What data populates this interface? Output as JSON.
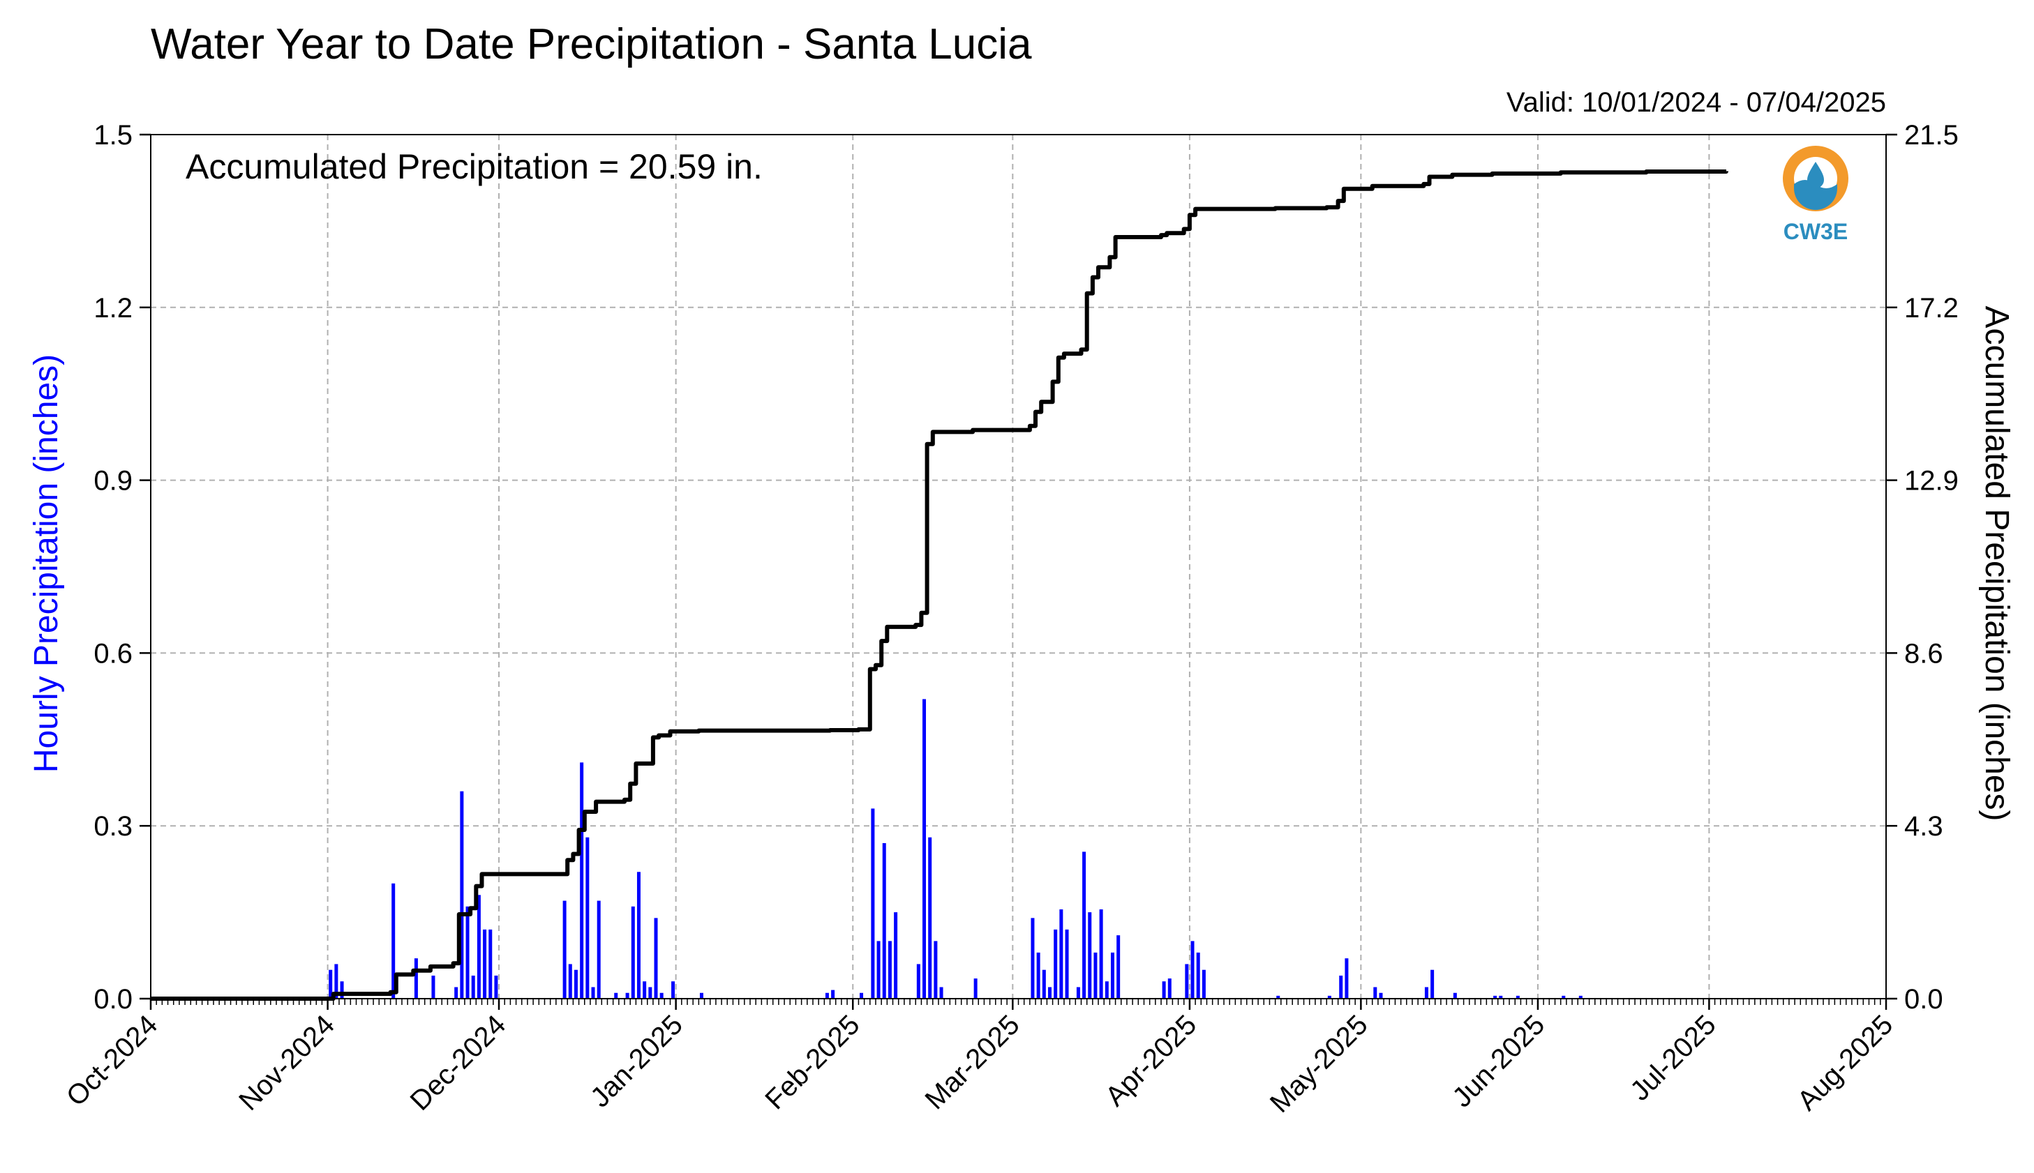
{
  "chart_data": {
    "type": "bar+line",
    "title": "Water Year to Date Precipitation - Santa Lucia",
    "subtitle": "Valid: 10/01/2024 - 07/04/2025",
    "annotation": "Accumulated Precipitation = 20.59 in.",
    "y_left_label": "Hourly Precipitation (inches)",
    "y_right_label": "Accumulated Precipitation (inches)",
    "x_range": [
      "2024-10-01",
      "2025-08-01"
    ],
    "y_left_range": [
      0,
      1.5
    ],
    "y_right_range": [
      0,
      21.5
    ],
    "x_ticks": [
      "Oct-2024",
      "Nov-2024",
      "Dec-2024",
      "Jan-2025",
      "Feb-2025",
      "Mar-2025",
      "Apr-2025",
      "May-2025",
      "Jun-2025",
      "Jul-2025",
      "Aug-2025"
    ],
    "y_left_ticks": [
      "0.0",
      "0.3",
      "0.6",
      "0.9",
      "1.2",
      "1.5"
    ],
    "y_right_ticks": [
      "0.0",
      "4.3",
      "8.6",
      "12.9",
      "17.2",
      "21.5"
    ],
    "grid": true,
    "logo_text": "CW3E",
    "colors": {
      "hourly_bars": "#0000ff",
      "accumulated_line": "#000000",
      "left_label": "#0000ff",
      "grid": "#b0b0b0",
      "logo_orange": "#f39a2b",
      "logo_blue": "#2b8dbf"
    },
    "series": [
      {
        "name": "Hourly Precipitation",
        "kind": "bar",
        "axis": "left",
        "points": [
          [
            "2024-11-01",
            0.05
          ],
          [
            "2024-11-02",
            0.06
          ],
          [
            "2024-11-03",
            0.03
          ],
          [
            "2024-11-12",
            0.2
          ],
          [
            "2024-11-16",
            0.07
          ],
          [
            "2024-11-19",
            0.04
          ],
          [
            "2024-11-23",
            0.02
          ],
          [
            "2024-11-24",
            0.36
          ],
          [
            "2024-11-25",
            0.16
          ],
          [
            "2024-11-26",
            0.04
          ],
          [
            "2024-11-27",
            0.18
          ],
          [
            "2024-11-28",
            0.12
          ],
          [
            "2024-11-29",
            0.12
          ],
          [
            "2024-11-30",
            0.04
          ],
          [
            "2024-12-12",
            0.17
          ],
          [
            "2024-12-13",
            0.06
          ],
          [
            "2024-12-14",
            0.05
          ],
          [
            "2024-12-15",
            0.41
          ],
          [
            "2024-12-16",
            0.28
          ],
          [
            "2024-12-17",
            0.02
          ],
          [
            "2024-12-18",
            0.17
          ],
          [
            "2024-12-21",
            0.01
          ],
          [
            "2024-12-23",
            0.01
          ],
          [
            "2024-12-24",
            0.16
          ],
          [
            "2024-12-25",
            0.22
          ],
          [
            "2024-12-26",
            0.03
          ],
          [
            "2024-12-27",
            0.02
          ],
          [
            "2024-12-28",
            0.14
          ],
          [
            "2024-12-29",
            0.01
          ],
          [
            "2024-12-31",
            0.03
          ],
          [
            "2025-01-05",
            0.01
          ],
          [
            "2025-01-27",
            0.01
          ],
          [
            "2025-01-28",
            0.015
          ],
          [
            "2025-02-02",
            0.01
          ],
          [
            "2025-02-04",
            0.33
          ],
          [
            "2025-02-05",
            0.1
          ],
          [
            "2025-02-06",
            0.27
          ],
          [
            "2025-02-07",
            0.1
          ],
          [
            "2025-02-08",
            0.15
          ],
          [
            "2025-02-12",
            0.06
          ],
          [
            "2025-02-13",
            0.52
          ],
          [
            "2025-02-14",
            0.28
          ],
          [
            "2025-02-15",
            0.1
          ],
          [
            "2025-02-16",
            0.02
          ],
          [
            "2025-02-22",
            0.035
          ],
          [
            "2025-03-04",
            0.14
          ],
          [
            "2025-03-05",
            0.08
          ],
          [
            "2025-03-06",
            0.05
          ],
          [
            "2025-03-07",
            0.02
          ],
          [
            "2025-03-08",
            0.12
          ],
          [
            "2025-03-09",
            0.155
          ],
          [
            "2025-03-10",
            0.12
          ],
          [
            "2025-03-12",
            0.02
          ],
          [
            "2025-03-13",
            0.255
          ],
          [
            "2025-03-14",
            0.15
          ],
          [
            "2025-03-15",
            0.08
          ],
          [
            "2025-03-16",
            0.155
          ],
          [
            "2025-03-17",
            0.03
          ],
          [
            "2025-03-18",
            0.08
          ],
          [
            "2025-03-19",
            0.11
          ],
          [
            "2025-03-27",
            0.03
          ],
          [
            "2025-03-28",
            0.035
          ],
          [
            "2025-03-31",
            0.06
          ],
          [
            "2025-04-01",
            0.1
          ],
          [
            "2025-04-02",
            0.08
          ],
          [
            "2025-04-03",
            0.05
          ],
          [
            "2025-04-16",
            0.005
          ],
          [
            "2025-04-25",
            0.005
          ],
          [
            "2025-04-27",
            0.04
          ],
          [
            "2025-04-28",
            0.07
          ],
          [
            "2025-05-03",
            0.02
          ],
          [
            "2025-05-04",
            0.01
          ],
          [
            "2025-05-12",
            0.02
          ],
          [
            "2025-05-13",
            0.05
          ],
          [
            "2025-05-17",
            0.01
          ],
          [
            "2025-05-24",
            0.005
          ],
          [
            "2025-05-25",
            0.005
          ],
          [
            "2025-05-28",
            0.005
          ],
          [
            "2025-06-05",
            0.005
          ],
          [
            "2025-06-08",
            0.005
          ]
        ]
      },
      {
        "name": "Accumulated Precipitation",
        "kind": "step",
        "axis": "right",
        "points": [
          [
            "2024-10-01",
            0
          ],
          [
            "2024-11-01",
            0.0
          ],
          [
            "2024-11-02",
            0.12
          ],
          [
            "2024-11-12",
            0.16
          ],
          [
            "2024-11-13",
            0.6
          ],
          [
            "2024-11-16",
            0.7
          ],
          [
            "2024-11-19",
            0.8
          ],
          [
            "2024-11-23",
            0.88
          ],
          [
            "2024-11-24",
            2.1
          ],
          [
            "2024-11-26",
            2.25
          ],
          [
            "2024-11-27",
            2.8
          ],
          [
            "2024-11-28",
            3.1
          ],
          [
            "2024-12-12",
            3.1
          ],
          [
            "2024-12-13",
            3.45
          ],
          [
            "2024-12-14",
            3.6
          ],
          [
            "2024-12-15",
            4.2
          ],
          [
            "2024-12-16",
            4.65
          ],
          [
            "2024-12-18",
            4.9
          ],
          [
            "2024-12-23",
            4.95
          ],
          [
            "2024-12-24",
            5.35
          ],
          [
            "2024-12-25",
            5.85
          ],
          [
            "2024-12-28",
            6.5
          ],
          [
            "2024-12-29",
            6.55
          ],
          [
            "2024-12-31",
            6.65
          ],
          [
            "2025-01-05",
            6.67
          ],
          [
            "2025-01-28",
            6.68
          ],
          [
            "2025-02-02",
            6.7
          ],
          [
            "2025-02-04",
            8.2
          ],
          [
            "2025-02-05",
            8.3
          ],
          [
            "2025-02-06",
            8.9
          ],
          [
            "2025-02-07",
            9.25
          ],
          [
            "2025-02-12",
            9.3
          ],
          [
            "2025-02-13",
            9.6
          ],
          [
            "2025-02-14",
            13.8
          ],
          [
            "2025-02-15",
            14.1
          ],
          [
            "2025-02-22",
            14.15
          ],
          [
            "2025-03-04",
            14.25
          ],
          [
            "2025-03-05",
            14.6
          ],
          [
            "2025-03-06",
            14.85
          ],
          [
            "2025-03-08",
            15.35
          ],
          [
            "2025-03-09",
            15.95
          ],
          [
            "2025-03-10",
            16.05
          ],
          [
            "2025-03-13",
            16.15
          ],
          [
            "2025-03-14",
            17.55
          ],
          [
            "2025-03-15",
            17.95
          ],
          [
            "2025-03-16",
            18.2
          ],
          [
            "2025-03-18",
            18.45
          ],
          [
            "2025-03-19",
            18.95
          ],
          [
            "2025-03-27",
            19.0
          ],
          [
            "2025-03-28",
            19.05
          ],
          [
            "2025-03-31",
            19.15
          ],
          [
            "2025-04-01",
            19.5
          ],
          [
            "2025-04-02",
            19.65
          ],
          [
            "2025-04-16",
            19.67
          ],
          [
            "2025-04-25",
            19.69
          ],
          [
            "2025-04-27",
            19.85
          ],
          [
            "2025-04-28",
            20.15
          ],
          [
            "2025-05-03",
            20.22
          ],
          [
            "2025-05-12",
            20.27
          ],
          [
            "2025-05-13",
            20.45
          ],
          [
            "2025-05-17",
            20.5
          ],
          [
            "2025-05-24",
            20.53
          ],
          [
            "2025-06-05",
            20.56
          ],
          [
            "2025-06-20",
            20.58
          ],
          [
            "2025-07-04",
            20.59
          ]
        ]
      }
    ]
  }
}
